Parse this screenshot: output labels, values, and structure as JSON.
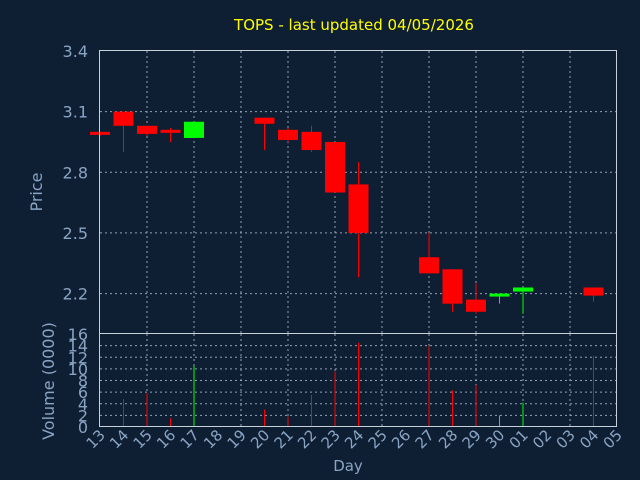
{
  "chart_data": [
    {
      "type": "candlestick",
      "title": "TOPS - last updated 04/05/2026",
      "ylabel": "Price",
      "ylim": [
        2.0,
        3.4
      ],
      "yticks": [
        "2.2",
        "2.5",
        "2.8",
        "3.1",
        "3.4"
      ],
      "colors": {
        "up": "#00ff00",
        "down": "#ff0000",
        "title": "#ffff00",
        "axis": "#8aa4c4",
        "background": "#0f1f33"
      },
      "candles": [
        {
          "day": "13",
          "open": 3.0,
          "high": 3.0,
          "low": 2.98,
          "close": 2.99
        },
        {
          "day": "14",
          "open": 3.1,
          "high": 3.1,
          "low": 2.9,
          "close": 3.03
        },
        {
          "day": "15",
          "open": 3.03,
          "high": 3.03,
          "low": 2.98,
          "close": 2.99
        },
        {
          "day": "16",
          "open": 3.01,
          "high": 3.02,
          "low": 2.95,
          "close": 3.0
        },
        {
          "day": "17",
          "open": 2.97,
          "high": 3.05,
          "low": 2.97,
          "close": 3.05
        },
        {
          "day": "20",
          "open": 3.07,
          "high": 3.07,
          "low": 2.91,
          "close": 3.04
        },
        {
          "day": "21",
          "open": 3.01,
          "high": 3.02,
          "low": 2.95,
          "close": 2.96
        },
        {
          "day": "22",
          "open": 3.0,
          "high": 3.03,
          "low": 2.9,
          "close": 2.91
        },
        {
          "day": "23",
          "open": 2.95,
          "high": 2.95,
          "low": 2.7,
          "close": 2.7
        },
        {
          "day": "24",
          "open": 2.74,
          "high": 2.85,
          "low": 2.28,
          "close": 2.5
        },
        {
          "day": "27",
          "open": 2.38,
          "high": 2.5,
          "low": 2.3,
          "close": 2.3
        },
        {
          "day": "28",
          "open": 2.32,
          "high": 2.32,
          "low": 2.11,
          "close": 2.15
        },
        {
          "day": "29",
          "open": 2.17,
          "high": 2.25,
          "low": 2.1,
          "close": 2.11
        },
        {
          "day": "30",
          "open": 2.19,
          "high": 2.2,
          "low": 2.15,
          "close": 2.2
        },
        {
          "day": "01",
          "open": 2.21,
          "high": 2.23,
          "low": 2.1,
          "close": 2.23
        },
        {
          "day": "04",
          "open": 2.23,
          "high": 2.23,
          "low": 2.16,
          "close": 2.19
        }
      ]
    },
    {
      "type": "bar",
      "ylabel": "Volume (0000)",
      "xlabel": "Day",
      "ylim": [
        0,
        16
      ],
      "yticks": [
        "0",
        "2",
        "4",
        "6",
        "8",
        "10",
        "12",
        "14",
        "16"
      ],
      "categories": [
        "13",
        "14",
        "15",
        "16",
        "17",
        "18",
        "19",
        "20",
        "21",
        "22",
        "23",
        "24",
        "25",
        "26",
        "27",
        "28",
        "29",
        "30",
        "01",
        "02",
        "03",
        "04",
        "05"
      ],
      "volumes": [
        {
          "day": "14",
          "value": 4.8,
          "color": "#ff0000"
        },
        {
          "day": "15",
          "value": 5.8,
          "color": "#ff0000"
        },
        {
          "day": "16",
          "value": 1.5,
          "color": "#ff0000"
        },
        {
          "day": "17",
          "value": 10.5,
          "color": "#00ff00"
        },
        {
          "day": "20",
          "value": 3.0,
          "color": "#ff0000"
        },
        {
          "day": "21",
          "value": 1.8,
          "color": "#ff0000"
        },
        {
          "day": "22",
          "value": 5.5,
          "color": "#ff0000"
        },
        {
          "day": "23",
          "value": 9.5,
          "color": "#ff0000"
        },
        {
          "day": "24",
          "value": 14.5,
          "color": "#ff0000"
        },
        {
          "day": "27",
          "value": 14.0,
          "color": "#ff0000"
        },
        {
          "day": "28",
          "value": 6.3,
          "color": "#ff0000"
        },
        {
          "day": "29",
          "value": 7.2,
          "color": "#ff0000"
        },
        {
          "day": "30",
          "value": 2.0,
          "color": "#00ff00"
        },
        {
          "day": "01",
          "value": 4.2,
          "color": "#00ff00"
        },
        {
          "day": "04",
          "value": 12.2,
          "color": "#ff0000"
        }
      ]
    }
  ]
}
